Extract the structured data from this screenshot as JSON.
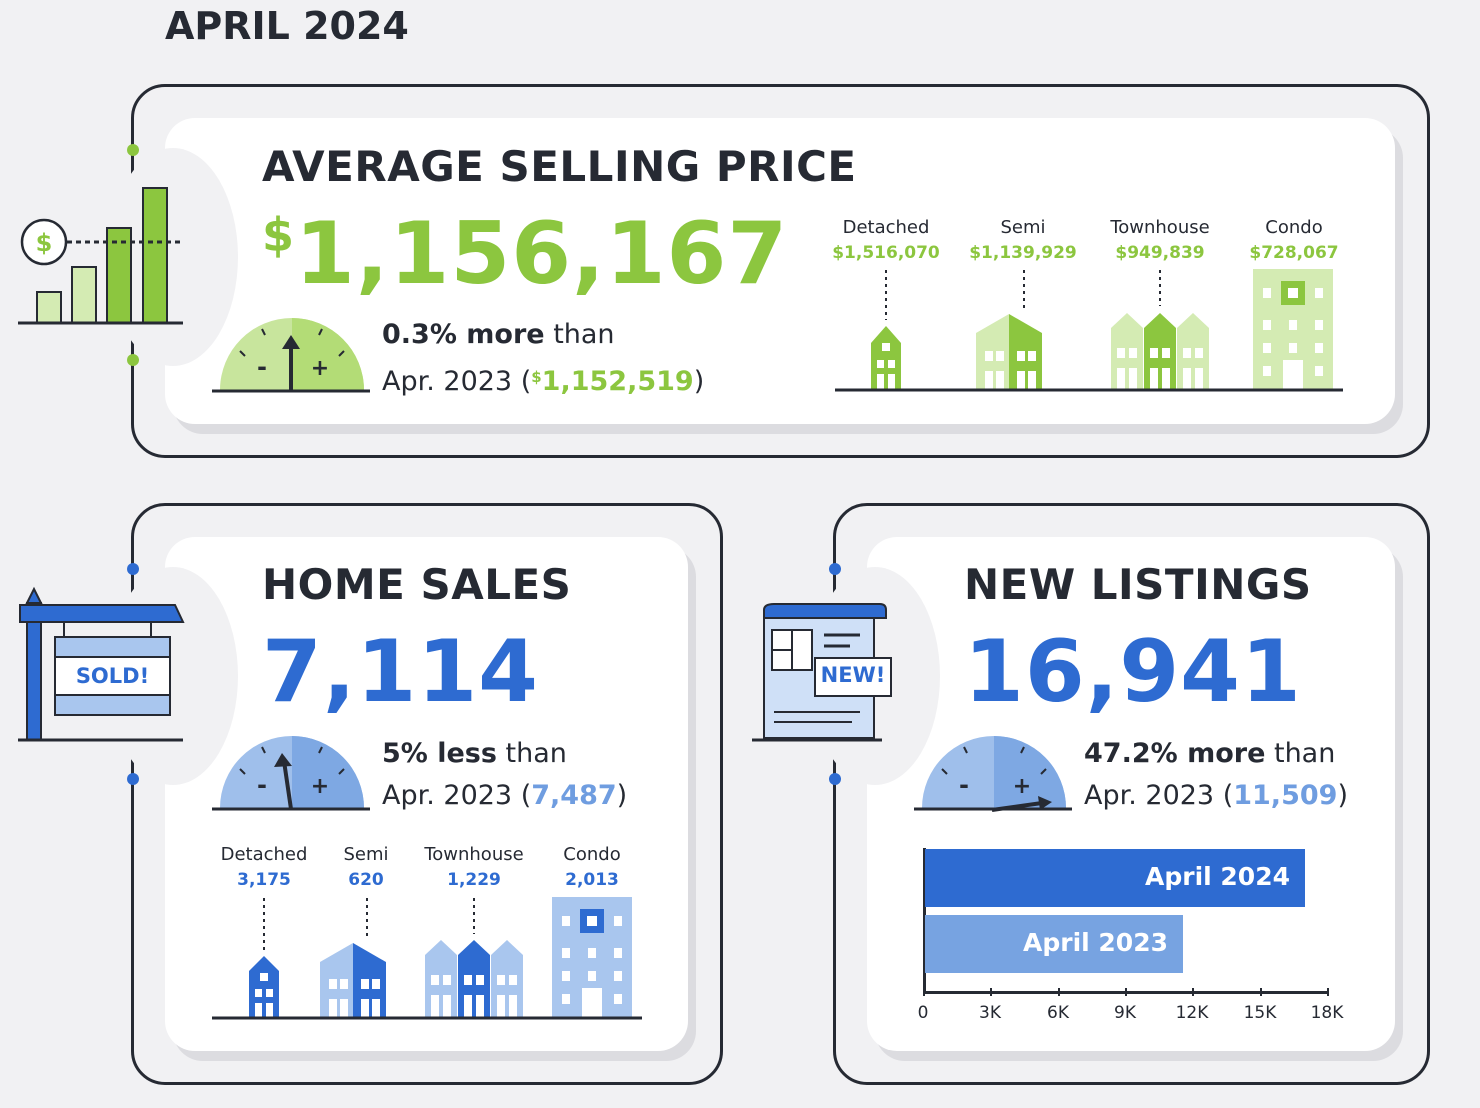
{
  "date_heading": "APRIL 2024",
  "colors": {
    "green": "#8cc63f",
    "green_light": "#d4ebb3",
    "blue": "#2e6bd1",
    "blue_light": "#a9c6ee",
    "dark": "#262a33"
  },
  "avg_price": {
    "title": "AVERAGE SELLING PRICE",
    "currency": "$",
    "value": "1,156,167",
    "change": "0.3% more",
    "than": "than",
    "prev_label": "Apr. 2023 (",
    "prev_currency": "$",
    "prev_value": "1,152,519",
    "close": ")",
    "icon": "price-chart-icon",
    "types": [
      {
        "label": "Detached",
        "value": "$1,516,070"
      },
      {
        "label": "Semi",
        "value": "$1,139,929"
      },
      {
        "label": "Townhouse",
        "value": "$949,839"
      },
      {
        "label": "Condo",
        "value": "$728,067"
      }
    ]
  },
  "home_sales": {
    "title": "HOME SALES",
    "value": "7,114",
    "change": "5% less",
    "than": "than",
    "prev_label": "Apr. 2023 (",
    "prev_value": "7,487",
    "close": ")",
    "icon": "sold-sign-icon",
    "sign_text": "SOLD!",
    "types": [
      {
        "label": "Detached",
        "value": "3,175"
      },
      {
        "label": "Semi",
        "value": "620"
      },
      {
        "label": "Townhouse",
        "value": "1,229"
      },
      {
        "label": "Condo",
        "value": "2,013"
      }
    ]
  },
  "new_listings": {
    "title": "NEW LISTINGS",
    "value": "16,941",
    "change": "47.2% more",
    "than": "than",
    "prev_label": "Apr. 2023 (",
    "prev_value": "11,509",
    "close": ")",
    "icon": "new-listing-icon",
    "badge_text": "NEW!"
  },
  "chart_data": {
    "type": "bar",
    "orientation": "horizontal",
    "categories": [
      "April 2024",
      "April 2023"
    ],
    "values": [
      16941,
      11509
    ],
    "xticks": [
      "0",
      "3K",
      "6K",
      "9K",
      "12K",
      "15K",
      "18K"
    ],
    "xlim": [
      0,
      18000
    ]
  }
}
